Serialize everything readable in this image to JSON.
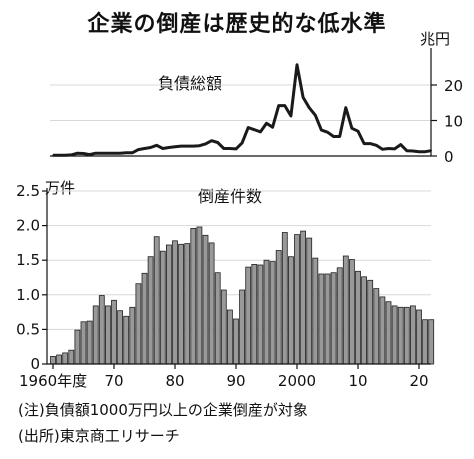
{
  "title": "企業の倒産は歴史的な低水準",
  "notes": [
    "(注)負債額1000万円以上の企業倒産が対象",
    "(出所)東京商工リサーチ"
  ],
  "chart_data": [
    {
      "type": "line",
      "title": "負債総額",
      "ylabel": "兆円",
      "ylim": [
        0,
        28
      ],
      "yticks": [
        0,
        10,
        20
      ],
      "x": [
        1960,
        1961,
        1962,
        1963,
        1964,
        1965,
        1966,
        1967,
        1968,
        1969,
        1970,
        1971,
        1972,
        1973,
        1974,
        1975,
        1976,
        1977,
        1978,
        1979,
        1980,
        1981,
        1982,
        1983,
        1984,
        1985,
        1986,
        1987,
        1988,
        1989,
        1990,
        1991,
        1992,
        1993,
        1994,
        1995,
        1996,
        1997,
        1998,
        1999,
        2000,
        2001,
        2002,
        2003,
        2004,
        2005,
        2006,
        2007,
        2008,
        2009,
        2010,
        2011,
        2012,
        2013,
        2014,
        2015,
        2016,
        2017,
        2018,
        2019,
        2020,
        2021,
        2022
      ],
      "values": [
        0.2,
        0.2,
        0.2,
        0.3,
        0.8,
        0.7,
        0.4,
        0.8,
        0.8,
        0.8,
        0.8,
        0.8,
        0.9,
        0.9,
        1.8,
        2.1,
        2.4,
        3.0,
        2.1,
        2.4,
        2.6,
        2.8,
        2.8,
        2.8,
        2.9,
        3.4,
        4.3,
        3.8,
        2.1,
        2.1,
        2.0,
        3.7,
        8.0,
        7.4,
        6.8,
        9.2,
        8.1,
        14.2,
        14.2,
        11.3,
        25.7,
        16.5,
        13.6,
        11.5,
        7.3,
        6.7,
        5.5,
        5.5,
        13.6,
        7.8,
        7.0,
        3.5,
        3.5,
        3.0,
        1.9,
        2.1,
        2.0,
        3.2,
        1.5,
        1.4,
        1.2,
        1.2,
        1.5
      ],
      "color": "#1a1a1a"
    },
    {
      "type": "bar",
      "title": "倒産件数",
      "ylabel": "万件",
      "ylim": [
        0,
        2.5
      ],
      "yticks": [
        "0",
        "0.5",
        "1.0",
        "1.5",
        "2.0",
        "2.5"
      ],
      "x": [
        1960,
        1961,
        1962,
        1963,
        1964,
        1965,
        1966,
        1967,
        1968,
        1969,
        1970,
        1971,
        1972,
        1973,
        1974,
        1975,
        1976,
        1977,
        1978,
        1979,
        1980,
        1981,
        1982,
        1983,
        1984,
        1985,
        1986,
        1987,
        1988,
        1989,
        1990,
        1991,
        1992,
        1993,
        1994,
        1995,
        1996,
        1997,
        1998,
        1999,
        2000,
        2001,
        2002,
        2003,
        2004,
        2005,
        2006,
        2007,
        2008,
        2009,
        2010,
        2011,
        2012,
        2013,
        2014,
        2015,
        2016,
        2017,
        2018,
        2019,
        2020,
        2021,
        2022
      ],
      "values": [
        0.11,
        0.13,
        0.16,
        0.2,
        0.49,
        0.61,
        0.62,
        0.84,
        0.99,
        0.84,
        0.92,
        0.77,
        0.69,
        0.82,
        1.16,
        1.31,
        1.55,
        1.84,
        1.63,
        1.72,
        1.78,
        1.73,
        1.74,
        1.96,
        1.98,
        1.86,
        1.75,
        1.32,
        1.07,
        0.78,
        0.65,
        1.07,
        1.4,
        1.44,
        1.43,
        1.5,
        1.48,
        1.64,
        1.9,
        1.55,
        1.87,
        1.92,
        1.82,
        1.53,
        1.3,
        1.3,
        1.32,
        1.39,
        1.56,
        1.51,
        1.34,
        1.26,
        1.21,
        1.09,
        0.97,
        0.9,
        0.84,
        0.82,
        0.82,
        0.84,
        0.78,
        0.64,
        0.64
      ],
      "xticklabels": [
        "1960年度",
        "70",
        "80",
        "90",
        "2000",
        "10",
        "20"
      ],
      "color": "#999999"
    }
  ]
}
